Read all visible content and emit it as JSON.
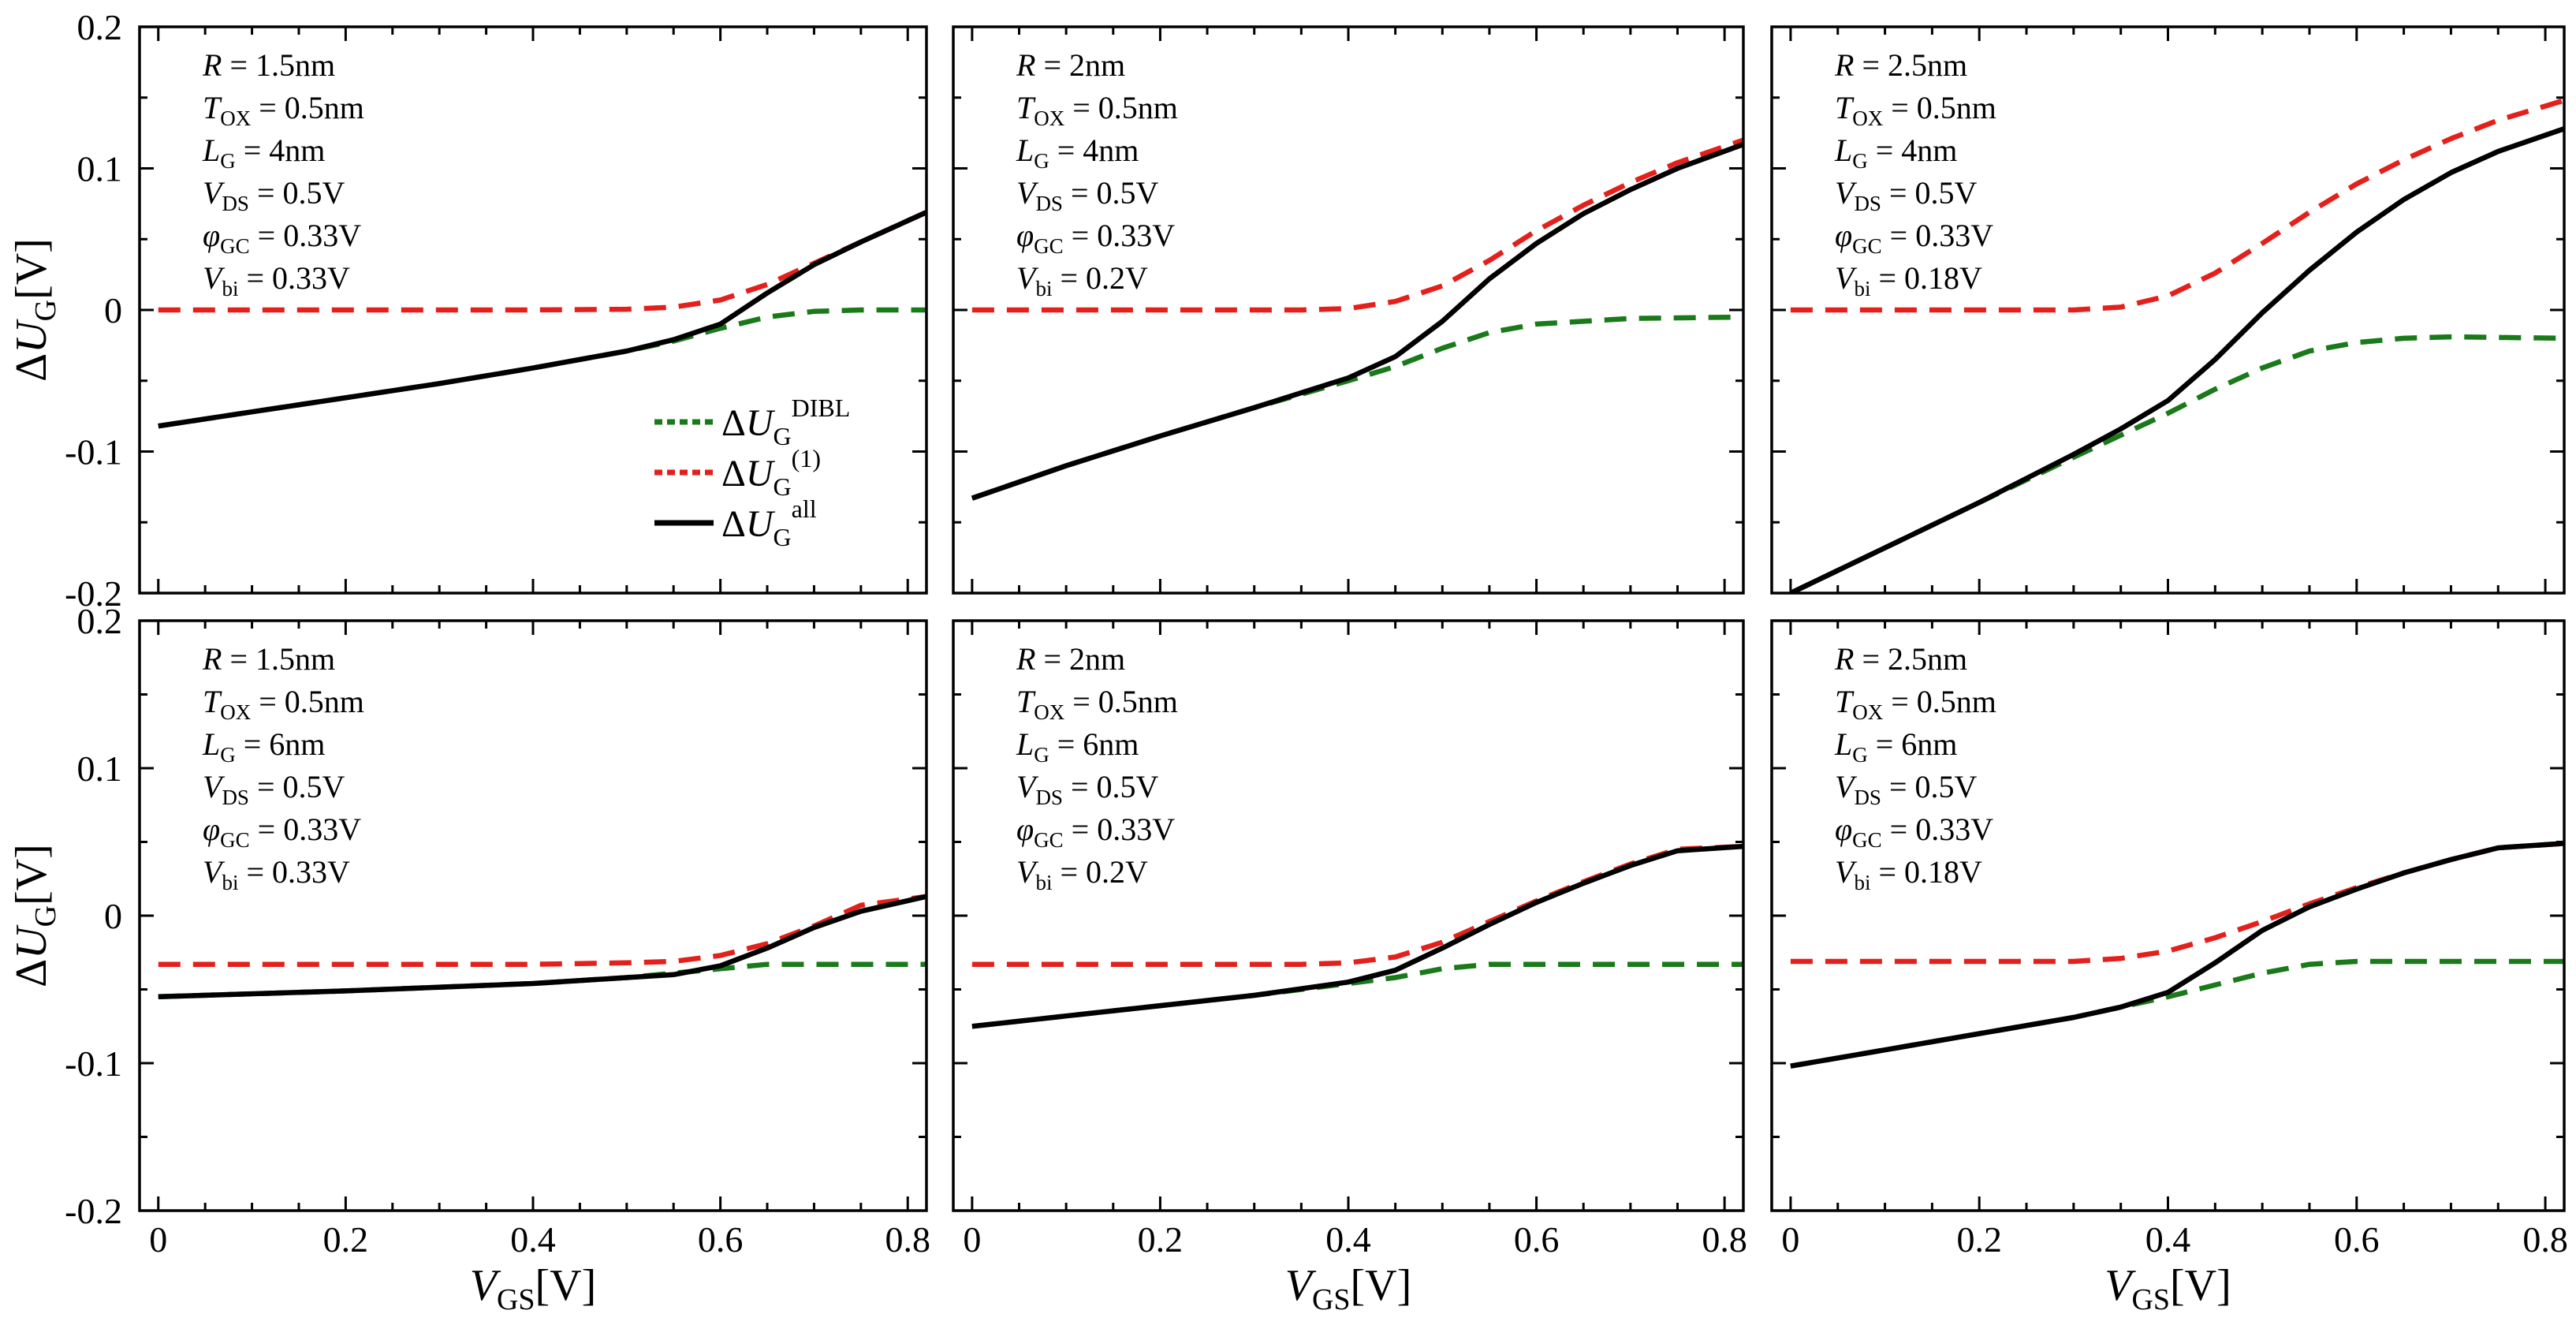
{
  "figure": {
    "ylabel_sym": "ΔU",
    "ylabel_sub": "G",
    "ylabel_unit": "[V]",
    "xlabel_sym": "V",
    "xlabel_sub": "GS",
    "xlabel_unit": "[V]"
  },
  "legend": {
    "items": [
      {
        "name": "dibl",
        "sym": "ΔU",
        "sub": "G",
        "sup": "DIBL",
        "color": "#1a7a1a",
        "style": "dotted"
      },
      {
        "name": "first",
        "sym": "ΔU",
        "sub": "G",
        "sup": "(1)",
        "color": "#e4201c",
        "style": "dotted"
      },
      {
        "name": "all",
        "sym": "ΔU",
        "sub": "G",
        "sup": "all",
        "color": "#000000",
        "style": "solid"
      }
    ]
  },
  "colors": {
    "dibl": "#1a7a1a",
    "first": "#e4201c",
    "all": "#000000"
  },
  "chart_data": [
    {
      "type": "line",
      "panel": "top-left",
      "xlim": [
        -0.02,
        0.82
      ],
      "ylim": [
        -0.2,
        0.2
      ],
      "xticks": [
        "0",
        "0.2",
        "0.4",
        "0.6",
        "0.8"
      ],
      "yticks": [
        {
          "v": -0.2,
          "t": "-0.2"
        },
        {
          "v": -0.1,
          "t": "-0.1"
        },
        {
          "v": 0,
          "t": "0"
        },
        {
          "v": 0.1,
          "t": "0.1"
        },
        {
          "v": 0.2,
          "t": "0.2"
        }
      ],
      "annotations": [
        {
          "sym": "R",
          "sub": "",
          "val": " = 1.5nm"
        },
        {
          "sym": "T",
          "sub": "OX",
          "val": " = 0.5nm"
        },
        {
          "sym": "L",
          "sub": "G",
          "val": " = 4nm"
        },
        {
          "sym": "V",
          "sub": "DS",
          "val": " = 0.5V"
        },
        {
          "sym": "φ",
          "sub": "GC",
          "val": " = 0.33V"
        },
        {
          "sym": "V",
          "sub": "bi",
          "val": " = 0.33V"
        }
      ],
      "series": [
        {
          "name": "ΔU_G^(1)",
          "key": "first",
          "x": [
            0,
            0.2,
            0.4,
            0.5,
            0.55,
            0.6,
            0.65,
            0.7,
            0.75,
            0.82
          ],
          "y": [
            0,
            0,
            0,
            0.0005,
            0.002,
            0.007,
            0.018,
            0.033,
            0.048,
            0.069
          ]
        },
        {
          "name": "ΔU_G^DIBL",
          "key": "dibl",
          "x": [
            0,
            0.1,
            0.2,
            0.3,
            0.4,
            0.5,
            0.55,
            0.6,
            0.65,
            0.7,
            0.75,
            0.82
          ],
          "y": [
            -0.082,
            -0.072,
            -0.062,
            -0.052,
            -0.041,
            -0.029,
            -0.022,
            -0.013,
            -0.005,
            -0.001,
            0,
            0
          ]
        },
        {
          "name": "ΔU_G^all",
          "key": "all",
          "x": [
            0,
            0.1,
            0.2,
            0.3,
            0.4,
            0.5,
            0.55,
            0.6,
            0.65,
            0.7,
            0.75,
            0.82
          ],
          "y": [
            -0.082,
            -0.072,
            -0.062,
            -0.052,
            -0.041,
            -0.029,
            -0.021,
            -0.01,
            0.012,
            0.032,
            0.048,
            0.069
          ]
        }
      ]
    },
    {
      "type": "line",
      "panel": "top-middle",
      "xlim": [
        -0.02,
        0.82
      ],
      "ylim": [
        -0.2,
        0.2
      ],
      "xticks": [
        "0",
        "0.2",
        "0.4",
        "0.6",
        "0.8"
      ],
      "yticks": [
        {
          "v": -0.2,
          "t": ""
        },
        {
          "v": -0.1,
          "t": ""
        },
        {
          "v": 0,
          "t": ""
        },
        {
          "v": 0.1,
          "t": ""
        },
        {
          "v": 0.2,
          "t": ""
        }
      ],
      "annotations": [
        {
          "sym": "R",
          "sub": "",
          "val": " = 2nm"
        },
        {
          "sym": "T",
          "sub": "OX",
          "val": " = 0.5nm"
        },
        {
          "sym": "L",
          "sub": "G",
          "val": " = 4nm"
        },
        {
          "sym": "V",
          "sub": "DS",
          "val": " = 0.5V"
        },
        {
          "sym": "φ",
          "sub": "GC",
          "val": " = 0.33V"
        },
        {
          "sym": "V",
          "sub": "bi",
          "val": " = 0.2V"
        }
      ],
      "series": [
        {
          "name": "ΔU_G^(1)",
          "key": "first",
          "x": [
            0,
            0.2,
            0.35,
            0.4,
            0.45,
            0.5,
            0.55,
            0.6,
            0.65,
            0.7,
            0.75,
            0.82
          ],
          "y": [
            0,
            0,
            0,
            0.001,
            0.006,
            0.017,
            0.035,
            0.056,
            0.074,
            0.09,
            0.104,
            0.12
          ]
        },
        {
          "name": "ΔU_G^DIBL",
          "key": "dibl",
          "x": [
            0,
            0.1,
            0.2,
            0.3,
            0.4,
            0.45,
            0.5,
            0.55,
            0.6,
            0.7,
            0.82
          ],
          "y": [
            -0.133,
            -0.11,
            -0.089,
            -0.069,
            -0.05,
            -0.04,
            -0.027,
            -0.016,
            -0.01,
            -0.006,
            -0.005
          ]
        },
        {
          "name": "ΔU_G^all",
          "key": "all",
          "x": [
            0,
            0.1,
            0.2,
            0.3,
            0.4,
            0.45,
            0.5,
            0.55,
            0.6,
            0.65,
            0.7,
            0.75,
            0.82
          ],
          "y": [
            -0.133,
            -0.11,
            -0.089,
            -0.069,
            -0.048,
            -0.033,
            -0.008,
            0.022,
            0.047,
            0.068,
            0.085,
            0.1,
            0.117
          ]
        }
      ]
    },
    {
      "type": "line",
      "panel": "top-right",
      "xlim": [
        -0.02,
        0.82
      ],
      "ylim": [
        -0.2,
        0.2
      ],
      "xticks": [
        "0",
        "0.2",
        "0.4",
        "0.6",
        "0.8"
      ],
      "yticks": [
        {
          "v": -0.2,
          "t": ""
        },
        {
          "v": -0.1,
          "t": ""
        },
        {
          "v": 0,
          "t": ""
        },
        {
          "v": 0.1,
          "t": ""
        },
        {
          "v": 0.2,
          "t": ""
        }
      ],
      "annotations": [
        {
          "sym": "R",
          "sub": "",
          "val": " = 2.5nm"
        },
        {
          "sym": "T",
          "sub": "OX",
          "val": " = 0.5nm"
        },
        {
          "sym": "L",
          "sub": "G",
          "val": " = 4nm"
        },
        {
          "sym": "V",
          "sub": "DS",
          "val": " = 0.5V"
        },
        {
          "sym": "φ",
          "sub": "GC",
          "val": " = 0.33V"
        },
        {
          "sym": "V",
          "sub": "bi",
          "val": " = 0.18V"
        }
      ],
      "series": [
        {
          "name": "ΔU_G^(1)",
          "key": "first",
          "x": [
            0,
            0.2,
            0.3,
            0.35,
            0.4,
            0.45,
            0.5,
            0.55,
            0.6,
            0.65,
            0.7,
            0.75,
            0.82
          ],
          "y": [
            0,
            0,
            0,
            0.002,
            0.01,
            0.026,
            0.047,
            0.069,
            0.089,
            0.106,
            0.121,
            0.134,
            0.148
          ]
        },
        {
          "name": "ΔU_G^DIBL",
          "key": "dibl",
          "x": [
            0,
            0.1,
            0.2,
            0.3,
            0.4,
            0.45,
            0.5,
            0.55,
            0.6,
            0.65,
            0.7,
            0.82
          ],
          "y": [
            -0.2,
            -0.168,
            -0.136,
            -0.104,
            -0.073,
            -0.056,
            -0.041,
            -0.029,
            -0.023,
            -0.02,
            -0.019,
            -0.02
          ]
        },
        {
          "name": "ΔU_G^all",
          "key": "all",
          "x": [
            0,
            0.1,
            0.2,
            0.3,
            0.35,
            0.4,
            0.45,
            0.5,
            0.55,
            0.6,
            0.65,
            0.7,
            0.75,
            0.82
          ],
          "y": [
            -0.2,
            -0.168,
            -0.136,
            -0.102,
            -0.084,
            -0.064,
            -0.035,
            -0.002,
            0.028,
            0.055,
            0.078,
            0.097,
            0.112,
            0.128
          ]
        }
      ]
    },
    {
      "type": "line",
      "panel": "bottom-left",
      "xlim": [
        -0.02,
        0.82
      ],
      "ylim": [
        -0.2,
        0.2
      ],
      "xticks": [
        "0",
        "0.2",
        "0.4",
        "0.6",
        "0.8"
      ],
      "yticks": [
        {
          "v": -0.2,
          "t": "-0.2"
        },
        {
          "v": -0.1,
          "t": "-0.1"
        },
        {
          "v": 0,
          "t": "0"
        },
        {
          "v": 0.1,
          "t": "0.1"
        },
        {
          "v": 0.2,
          "t": "0.2"
        }
      ],
      "annotations": [
        {
          "sym": "R",
          "sub": "",
          "val": " = 1.5nm"
        },
        {
          "sym": "T",
          "sub": "OX",
          "val": " = 0.5nm"
        },
        {
          "sym": "L",
          "sub": "G",
          "val": " = 6nm"
        },
        {
          "sym": "V",
          "sub": "DS",
          "val": " = 0.5V"
        },
        {
          "sym": "φ",
          "sub": "GC",
          "val": " = 0.33V"
        },
        {
          "sym": "V",
          "sub": "bi",
          "val": " = 0.33V"
        }
      ],
      "series": [
        {
          "name": "ΔU_G^(1)",
          "key": "first",
          "x": [
            0,
            0.2,
            0.4,
            0.5,
            0.55,
            0.6,
            0.65,
            0.7,
            0.75,
            0.82
          ],
          "y": [
            -0.033,
            -0.033,
            -0.033,
            -0.032,
            -0.031,
            -0.027,
            -0.019,
            -0.007,
            0.007,
            0.013
          ]
        },
        {
          "name": "ΔU_G^DIBL",
          "key": "dibl",
          "x": [
            0,
            0.2,
            0.4,
            0.5,
            0.55,
            0.6,
            0.65,
            0.7,
            0.82
          ],
          "y": [
            -0.055,
            -0.051,
            -0.046,
            -0.042,
            -0.039,
            -0.036,
            -0.033,
            -0.033,
            -0.033
          ]
        },
        {
          "name": "ΔU_G^all",
          "key": "all",
          "x": [
            0,
            0.2,
            0.4,
            0.5,
            0.55,
            0.6,
            0.65,
            0.7,
            0.75,
            0.82
          ],
          "y": [
            -0.055,
            -0.051,
            -0.046,
            -0.042,
            -0.04,
            -0.034,
            -0.022,
            -0.008,
            0.003,
            0.013
          ]
        }
      ]
    },
    {
      "type": "line",
      "panel": "bottom-middle",
      "xlim": [
        -0.02,
        0.82
      ],
      "ylim": [
        -0.2,
        0.2
      ],
      "xticks": [
        "0",
        "0.2",
        "0.4",
        "0.6",
        "0.8"
      ],
      "yticks": [
        {
          "v": -0.2,
          "t": ""
        },
        {
          "v": -0.1,
          "t": ""
        },
        {
          "v": 0,
          "t": ""
        },
        {
          "v": 0.1,
          "t": ""
        },
        {
          "v": 0.2,
          "t": ""
        }
      ],
      "annotations": [
        {
          "sym": "R",
          "sub": "",
          "val": " = 2nm"
        },
        {
          "sym": "T",
          "sub": "OX",
          "val": " = 0.5nm"
        },
        {
          "sym": "L",
          "sub": "G",
          "val": " = 6nm"
        },
        {
          "sym": "V",
          "sub": "DS",
          "val": " = 0.5V"
        },
        {
          "sym": "φ",
          "sub": "GC",
          "val": " = 0.33V"
        },
        {
          "sym": "V",
          "sub": "bi",
          "val": " = 0.2V"
        }
      ],
      "series": [
        {
          "name": "ΔU_G^(1)",
          "key": "first",
          "x": [
            0,
            0.2,
            0.35,
            0.4,
            0.45,
            0.5,
            0.55,
            0.6,
            0.65,
            0.7,
            0.75,
            0.82
          ],
          "y": [
            -0.033,
            -0.033,
            -0.033,
            -0.032,
            -0.028,
            -0.018,
            -0.004,
            0.01,
            0.023,
            0.035,
            0.045,
            0.047
          ]
        },
        {
          "name": "ΔU_G^DIBL",
          "key": "dibl",
          "x": [
            0,
            0.1,
            0.2,
            0.3,
            0.4,
            0.45,
            0.5,
            0.55,
            0.6,
            0.82
          ],
          "y": [
            -0.075,
            -0.068,
            -0.061,
            -0.054,
            -0.046,
            -0.042,
            -0.036,
            -0.033,
            -0.033,
            -0.033
          ]
        },
        {
          "name": "ΔU_G^all",
          "key": "all",
          "x": [
            0,
            0.1,
            0.2,
            0.3,
            0.4,
            0.45,
            0.5,
            0.55,
            0.6,
            0.65,
            0.7,
            0.75,
            0.82
          ],
          "y": [
            -0.075,
            -0.068,
            -0.061,
            -0.054,
            -0.045,
            -0.037,
            -0.022,
            -0.006,
            0.009,
            0.022,
            0.034,
            0.044,
            0.047
          ]
        }
      ]
    },
    {
      "type": "line",
      "panel": "bottom-right",
      "xlim": [
        -0.02,
        0.82
      ],
      "ylim": [
        -0.2,
        0.2
      ],
      "xticks": [
        "0",
        "0.2",
        "0.4",
        "0.6",
        "0.8"
      ],
      "yticks": [
        {
          "v": -0.2,
          "t": ""
        },
        {
          "v": -0.1,
          "t": ""
        },
        {
          "v": 0,
          "t": ""
        },
        {
          "v": 0.1,
          "t": ""
        },
        {
          "v": 0.2,
          "t": ""
        }
      ],
      "annotations": [
        {
          "sym": "R",
          "sub": "",
          "val": " = 2.5nm"
        },
        {
          "sym": "T",
          "sub": "OX",
          "val": " = 0.5nm"
        },
        {
          "sym": "L",
          "sub": "G",
          "val": " = 6nm"
        },
        {
          "sym": "V",
          "sub": "DS",
          "val": " = 0.5V"
        },
        {
          "sym": "φ",
          "sub": "GC",
          "val": " = 0.33V"
        },
        {
          "sym": "V",
          "sub": "bi",
          "val": " = 0.18V"
        }
      ],
      "series": [
        {
          "name": "ΔU_G^(1)",
          "key": "first",
          "x": [
            0,
            0.2,
            0.3,
            0.35,
            0.4,
            0.45,
            0.5,
            0.55,
            0.6,
            0.65,
            0.7,
            0.75,
            0.82
          ],
          "y": [
            -0.031,
            -0.031,
            -0.031,
            -0.029,
            -0.024,
            -0.015,
            -0.004,
            0.008,
            0.019,
            0.029,
            0.038,
            0.046,
            0.049
          ]
        },
        {
          "name": "ΔU_G^DIBL",
          "key": "dibl",
          "x": [
            0,
            0.1,
            0.2,
            0.3,
            0.4,
            0.45,
            0.5,
            0.55,
            0.6,
            0.82
          ],
          "y": [
            -0.102,
            -0.091,
            -0.08,
            -0.069,
            -0.055,
            -0.047,
            -0.039,
            -0.033,
            -0.031,
            -0.031
          ]
        },
        {
          "name": "ΔU_G^all",
          "key": "all",
          "x": [
            0,
            0.1,
            0.2,
            0.3,
            0.35,
            0.4,
            0.45,
            0.5,
            0.55,
            0.6,
            0.65,
            0.7,
            0.75,
            0.82
          ],
          "y": [
            -0.102,
            -0.091,
            -0.08,
            -0.069,
            -0.062,
            -0.052,
            -0.032,
            -0.01,
            0.006,
            0.018,
            0.029,
            0.038,
            0.046,
            0.049
          ]
        }
      ]
    }
  ]
}
